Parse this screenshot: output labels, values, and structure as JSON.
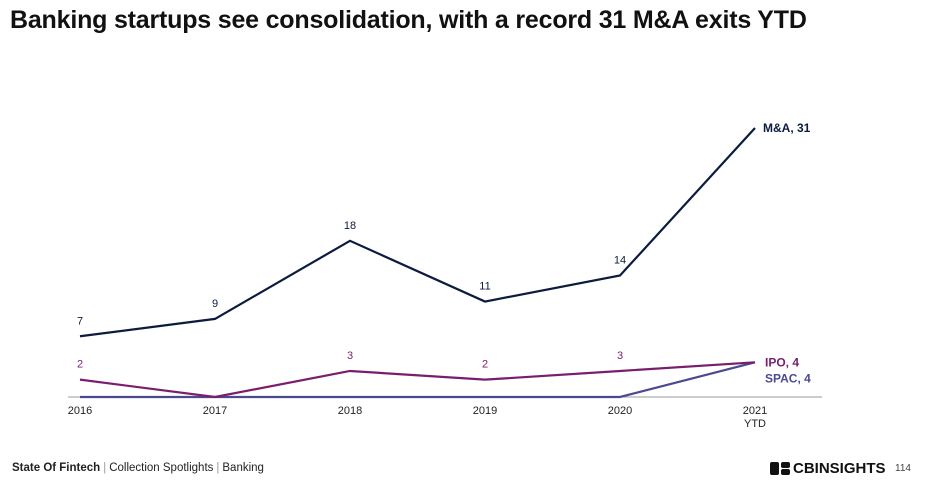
{
  "title": "Banking startups see consolidation, with a record 31 M&A exits YTD",
  "footer": {
    "report": "State Of Fintech",
    "section": "Collection Spotlights",
    "topic": "Banking",
    "brand": "CBINSIGHTS",
    "page": "114"
  },
  "chart_data": {
    "type": "line",
    "categories": [
      {
        "line1": "2016",
        "line2": ""
      },
      {
        "line1": "2017",
        "line2": ""
      },
      {
        "line1": "2018",
        "line2": ""
      },
      {
        "line1": "2019",
        "line2": ""
      },
      {
        "line1": "2020",
        "line2": ""
      },
      {
        "line1": "2021",
        "line2": "YTD"
      }
    ],
    "ylim": [
      0,
      31
    ],
    "grid": false,
    "legend": "end-of-line labels",
    "series": [
      {
        "name": "M&A",
        "end_label": "M&A, 31",
        "color": "#0c1b3e",
        "values": [
          7,
          9,
          18,
          11,
          14,
          31
        ],
        "labels": [
          "7",
          "9",
          "18",
          "11",
          "14",
          ""
        ]
      },
      {
        "name": "IPO",
        "end_label": "IPO, 4",
        "color": "#7b1d6e",
        "values": [
          2,
          0,
          3,
          2,
          3,
          4
        ],
        "labels": [
          "2",
          "",
          "3",
          "2",
          "3",
          ""
        ]
      },
      {
        "name": "SPAC",
        "end_label": "SPAC, 4",
        "color": "#4b4a8f",
        "values": [
          0,
          0,
          0,
          0,
          0,
          4
        ],
        "labels": [
          "",
          "",
          "",
          "",
          "",
          ""
        ]
      }
    ]
  }
}
